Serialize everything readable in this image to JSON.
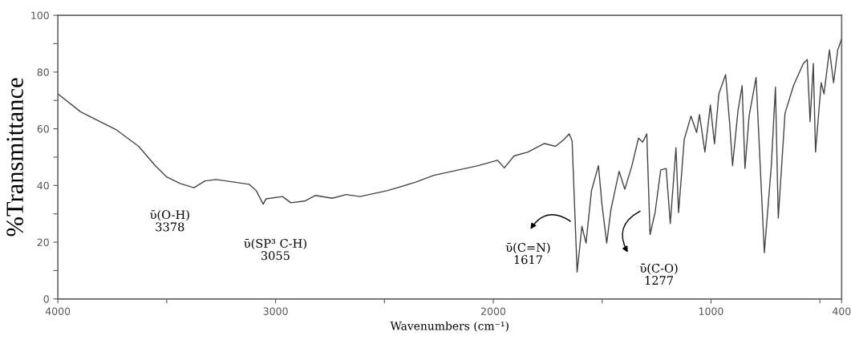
{
  "chart_data": {
    "type": "line",
    "xlabel": "Wavenumbers (cm⁻¹)",
    "ylabel": "%Transmittance",
    "x": [
      4000,
      3896,
      3845,
      3731,
      3629,
      3553,
      3502,
      3438,
      3375,
      3324,
      3273,
      3184,
      3121,
      3089,
      3057,
      3044,
      2968,
      2930,
      2867,
      2816,
      2740,
      2676,
      2612,
      2485,
      2359,
      2273,
      2070,
      1981,
      1949,
      1905,
      1841,
      1765,
      1714,
      1676,
      1651,
      1638,
      1615,
      1593,
      1574,
      1549,
      1517,
      1501,
      1479,
      1460,
      1422,
      1396,
      1365,
      1333,
      1314,
      1295,
      1280,
      1257,
      1231,
      1206,
      1187,
      1161,
      1149,
      1123,
      1092,
      1066,
      1053,
      1028,
      1003,
      984,
      964,
      933,
      914,
      901,
      876,
      857,
      844,
      825,
      793,
      774,
      755,
      723,
      704,
      691,
      660,
      621,
      576,
      558,
      545,
      530,
      520,
      494,
      481,
      456,
      437,
      418,
      400
    ],
    "series": [
      {
        "color": "#444444",
        "values": [
          72.3,
          66,
          64,
          59.6,
          53.8,
          47,
          43.1,
          40.7,
          39.2,
          41.6,
          42.1,
          41.1,
          40.4,
          38.2,
          33.4,
          35.3,
          36.1,
          33.9,
          34.5,
          36.5,
          35.5,
          36.8,
          36.1,
          38.2,
          41.1,
          43.6,
          47,
          48.9,
          46.2,
          50.4,
          51.8,
          54.8,
          53.8,
          56.2,
          58.2,
          55.7,
          9.5,
          25.6,
          19.7,
          38.2,
          47,
          33.4,
          19.7,
          31.4,
          45,
          38.7,
          46.5,
          56.7,
          55.3,
          58.2,
          22.7,
          30.4,
          45.5,
          46,
          26.6,
          53.3,
          30.4,
          56.2,
          64.5,
          58.7,
          65,
          51.8,
          68.4,
          54.7,
          72.3,
          79.1,
          61.6,
          47,
          66.4,
          75.2,
          46,
          64.5,
          78.1,
          47,
          16.3,
          47,
          74.7,
          28.5,
          65.5,
          75.2,
          83,
          84.4,
          62.5,
          83,
          51.8,
          76.2,
          72.3,
          87.8,
          76.2,
          87.8,
          91.7
        ]
      }
    ],
    "xlim": [
      4000,
      400
    ],
    "xticks": [
      4000,
      {
        "value": 3500,
        "label": null
      },
      3000,
      {
        "value": 2500,
        "label": null
      },
      2000,
      {
        "value": 1500,
        "label": null
      },
      1000,
      {
        "value": 500,
        "label": null
      },
      400
    ],
    "ylim": [
      0,
      100
    ],
    "yticks": [
      0,
      {
        "value": 10,
        "label": null
      },
      20,
      {
        "value": 30,
        "label": null
      },
      40,
      {
        "value": 50,
        "label": null
      },
      60,
      {
        "value": 70,
        "label": null
      },
      80,
      {
        "value": 90,
        "label": null
      },
      100
    ],
    "grid": false,
    "legend": false,
    "marker": "none",
    "line_style": "solid",
    "annotations": [
      {
        "text": "ῡ(O-H)\n3378",
        "x": 3378,
        "y": 39.2
      },
      {
        "text": "ῡ(SP³ C-H)\n3055",
        "x": 3057,
        "y": 33.4
      },
      "ῡ(C=N)\n1617",
      {
        "text": "ῡ(C-O)\n1277",
        "x": 1280,
        "y": 22.7
      }
    ]
  }
}
